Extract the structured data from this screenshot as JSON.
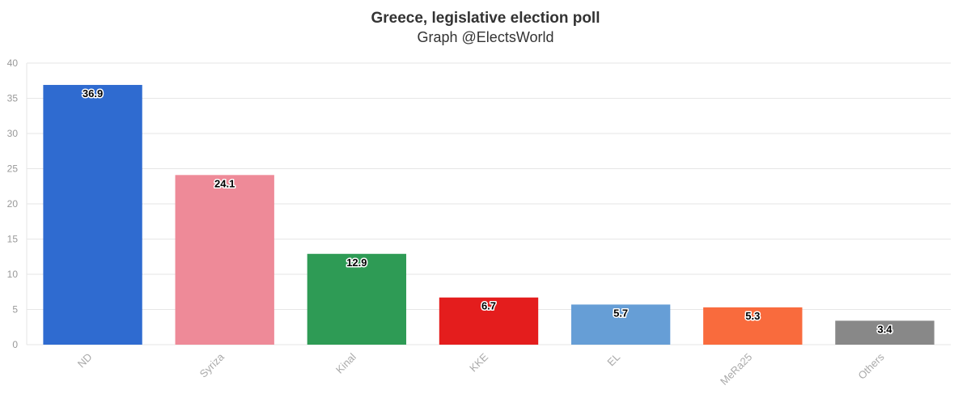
{
  "chart_data": {
    "type": "bar",
    "title": "Greece, legislative election poll",
    "subtitle": "Graph @ElectsWorld",
    "categories": [
      "ND",
      "Syriza",
      "Kinal",
      "KKE",
      "EL",
      "MeRa25",
      "Others"
    ],
    "values": [
      36.9,
      24.1,
      12.9,
      6.7,
      5.7,
      5.3,
      3.4
    ],
    "value_labels": [
      "36.9",
      "24.1",
      "12.9",
      "6.7",
      "5.7",
      "5.3",
      "3.4"
    ],
    "colors": [
      "#2f6bd0",
      "#ee8a98",
      "#2e9b55",
      "#e41d1d",
      "#669ed6",
      "#f96b3d",
      "#888888"
    ],
    "ylim": [
      0,
      40
    ],
    "yticks": [
      "0",
      "5",
      "10",
      "15",
      "20",
      "25",
      "30",
      "35",
      "40"
    ],
    "xlabel": "",
    "ylabel": "",
    "grid": true,
    "legend": "none"
  }
}
